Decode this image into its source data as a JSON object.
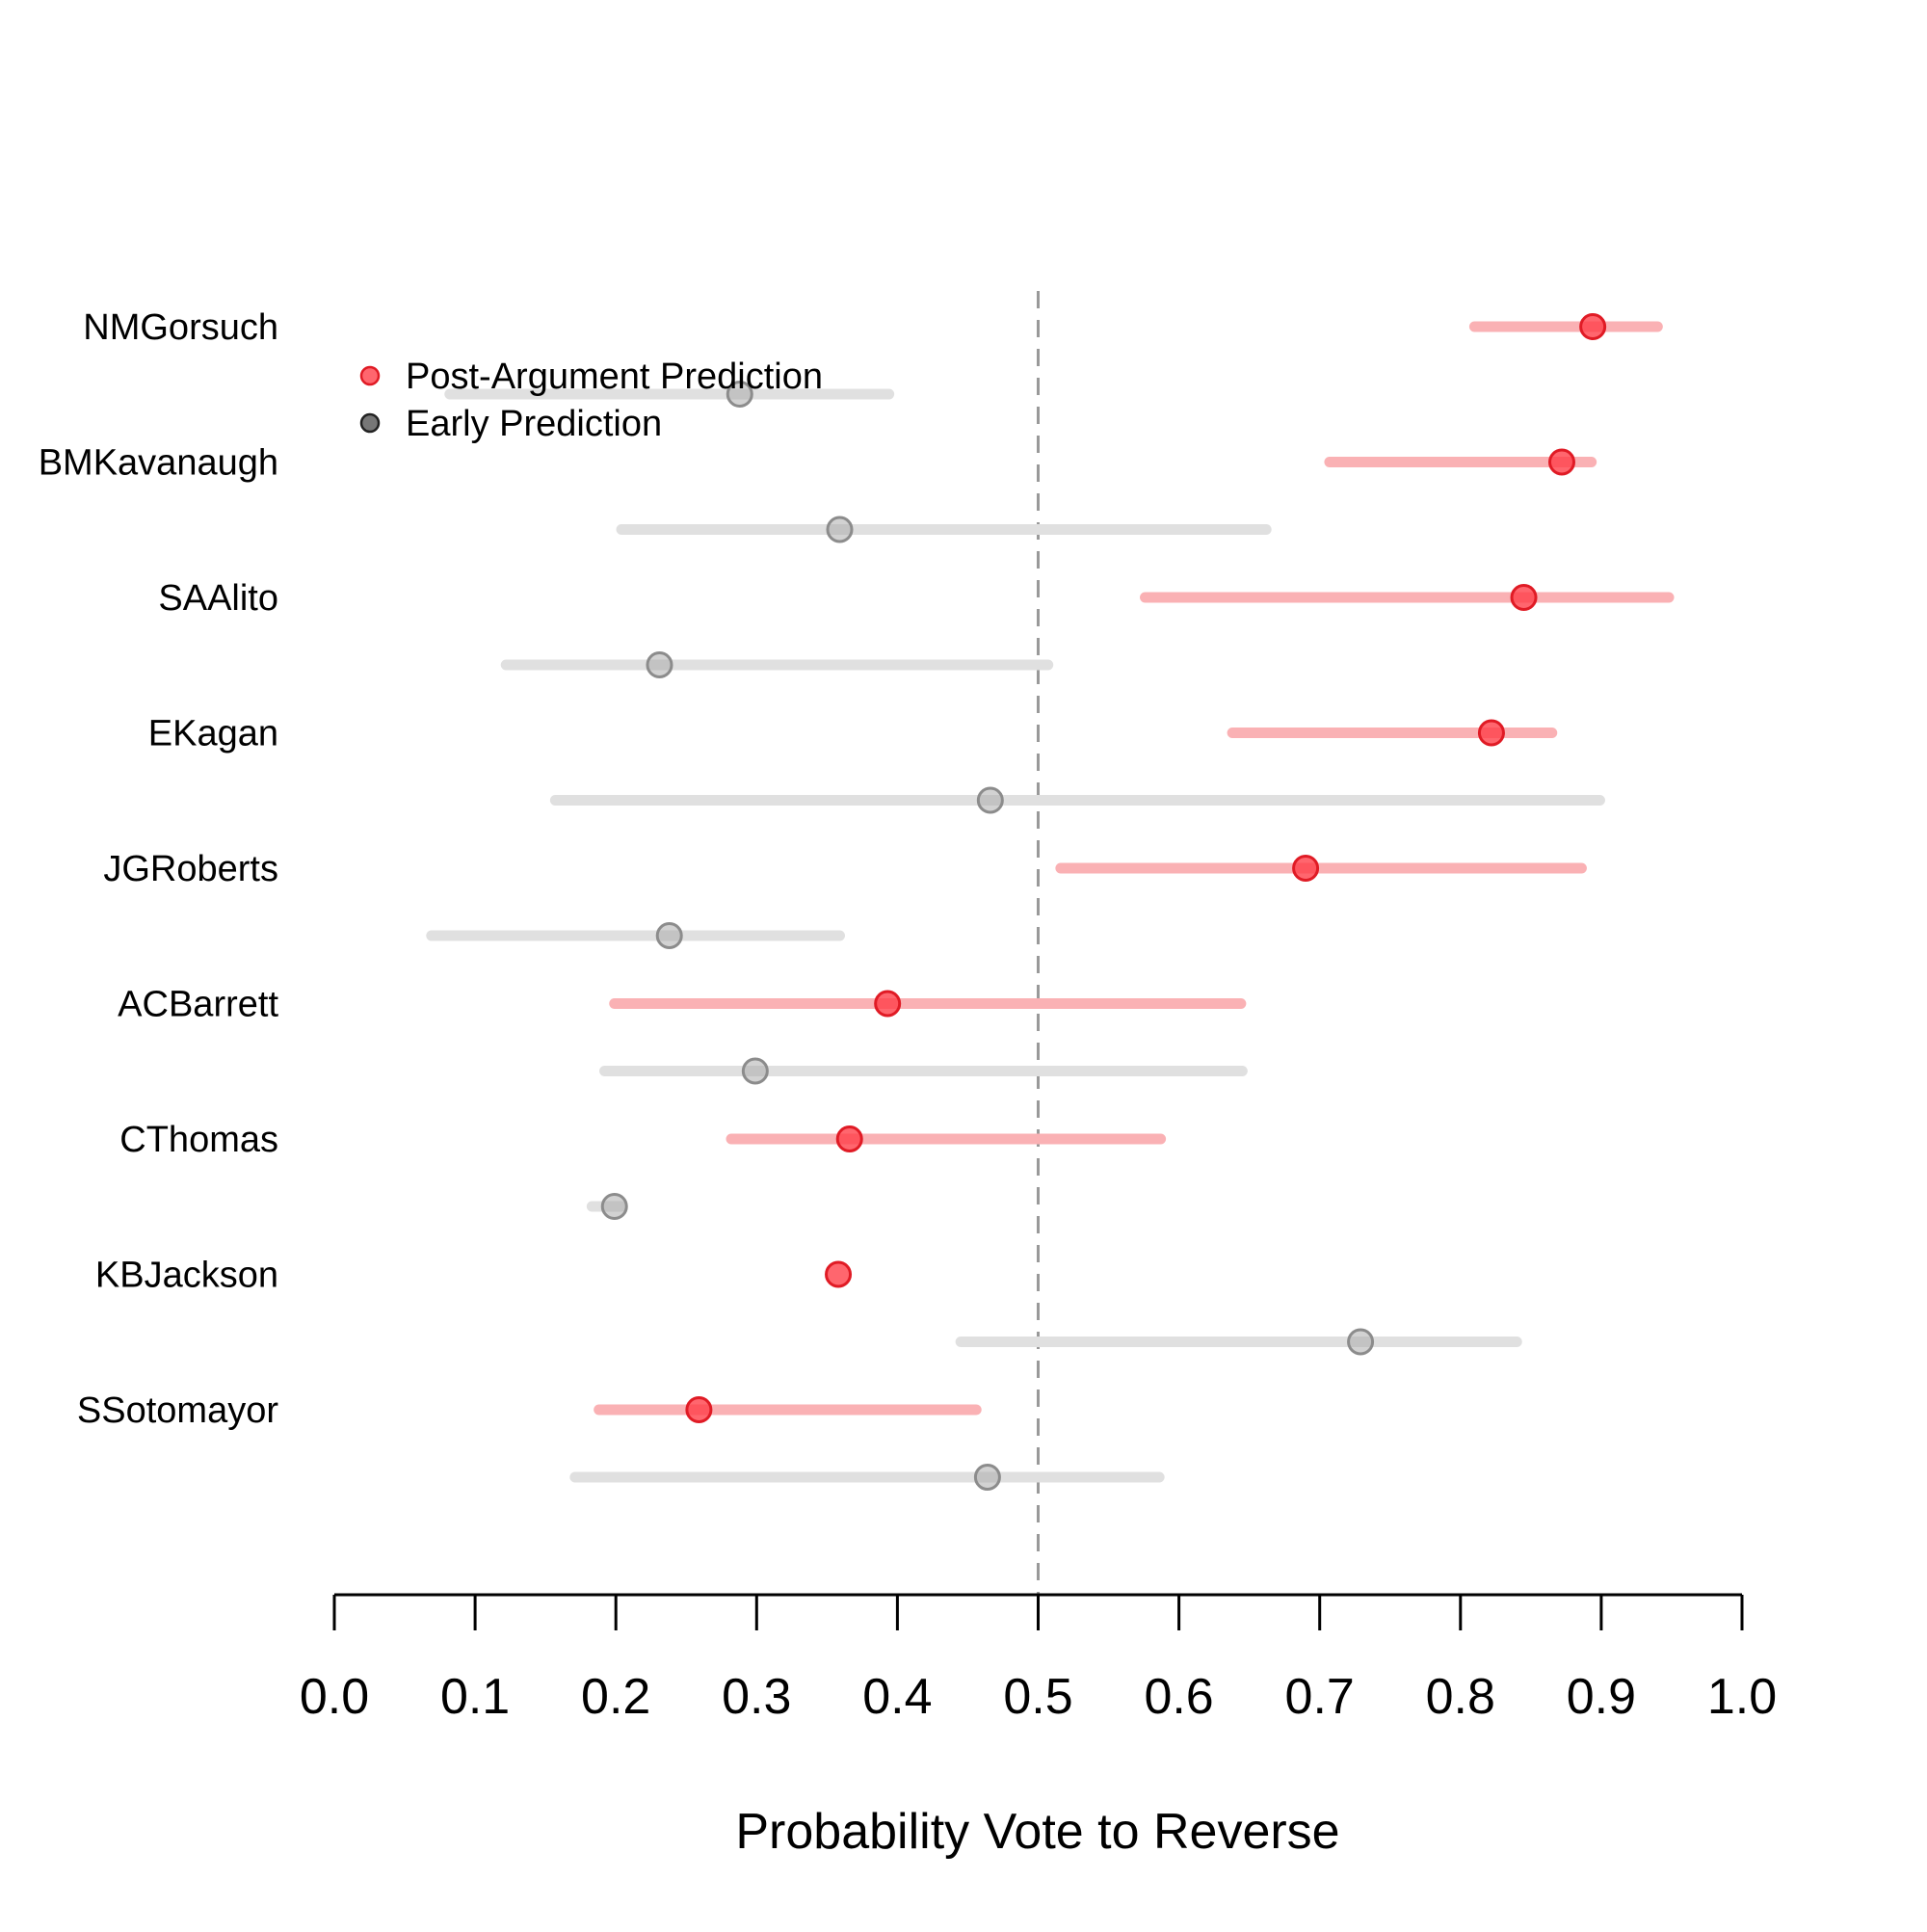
{
  "chart_data": {
    "type": "dot-interval",
    "title": "",
    "xlabel": "Probability Vote to Reverse",
    "ylabel": "",
    "xlim": [
      0.0,
      1.0
    ],
    "x_ticks": [
      "0.0",
      "0.1",
      "0.2",
      "0.3",
      "0.4",
      "0.5",
      "0.6",
      "0.7",
      "0.8",
      "0.9",
      "1.0"
    ],
    "reference_line": 0.5,
    "legend_position": "top-left",
    "colors": {
      "post": "#ff3b45",
      "post_interval": "#fab1b4",
      "early": "#a6a6a6",
      "early_interval": "#e0e0e0",
      "axis": "#000000",
      "reference": "#999999"
    },
    "justices": [
      "NMGorsuch",
      "BMKavanaugh",
      "SAAlito",
      "EKagan",
      "JGRoberts",
      "ACBarrett",
      "CThomas",
      "KBJackson",
      "SSotomayor"
    ],
    "series": [
      {
        "name": "Post-Argument Prediction",
        "points": [
          {
            "justice": "NMGorsuch",
            "estimate": 0.894,
            "low": 0.81,
            "high": 0.94
          },
          {
            "justice": "BMKavanaugh",
            "estimate": 0.872,
            "low": 0.707,
            "high": 0.893
          },
          {
            "justice": "SAAlito",
            "estimate": 0.845,
            "low": 0.576,
            "high": 0.948
          },
          {
            "justice": "EKagan",
            "estimate": 0.822,
            "low": 0.638,
            "high": 0.865
          },
          {
            "justice": "JGRoberts",
            "estimate": 0.69,
            "low": 0.516,
            "high": 0.886
          },
          {
            "justice": "ACBarrett",
            "estimate": 0.393,
            "low": 0.199,
            "high": 0.644
          },
          {
            "justice": "CThomas",
            "estimate": 0.366,
            "low": 0.282,
            "high": 0.587
          },
          {
            "justice": "KBJackson",
            "estimate": 0.358,
            "low": 0.358,
            "high": 0.358
          },
          {
            "justice": "SSotomayor",
            "estimate": 0.259,
            "low": 0.188,
            "high": 0.456
          }
        ]
      },
      {
        "name": "Early Prediction",
        "points": [
          {
            "justice": "NMGorsuch",
            "estimate": 0.288,
            "low": 0.082,
            "high": 0.394
          },
          {
            "justice": "BMKavanaugh",
            "estimate": 0.359,
            "low": 0.204,
            "high": 0.662
          },
          {
            "justice": "SAAlito",
            "estimate": 0.231,
            "low": 0.122,
            "high": 0.507
          },
          {
            "justice": "EKagan",
            "estimate": 0.466,
            "low": 0.157,
            "high": 0.899
          },
          {
            "justice": "JGRoberts",
            "estimate": 0.238,
            "low": 0.069,
            "high": 0.359
          },
          {
            "justice": "ACBarrett",
            "estimate": 0.299,
            "low": 0.192,
            "high": 0.645
          },
          {
            "justice": "CThomas",
            "estimate": 0.199,
            "low": 0.183,
            "high": 0.204
          },
          {
            "justice": "KBJackson",
            "estimate": 0.729,
            "low": 0.445,
            "high": 0.84
          },
          {
            "justice": "SSotomayor",
            "estimate": 0.464,
            "low": 0.171,
            "high": 0.586
          }
        ]
      }
    ]
  }
}
